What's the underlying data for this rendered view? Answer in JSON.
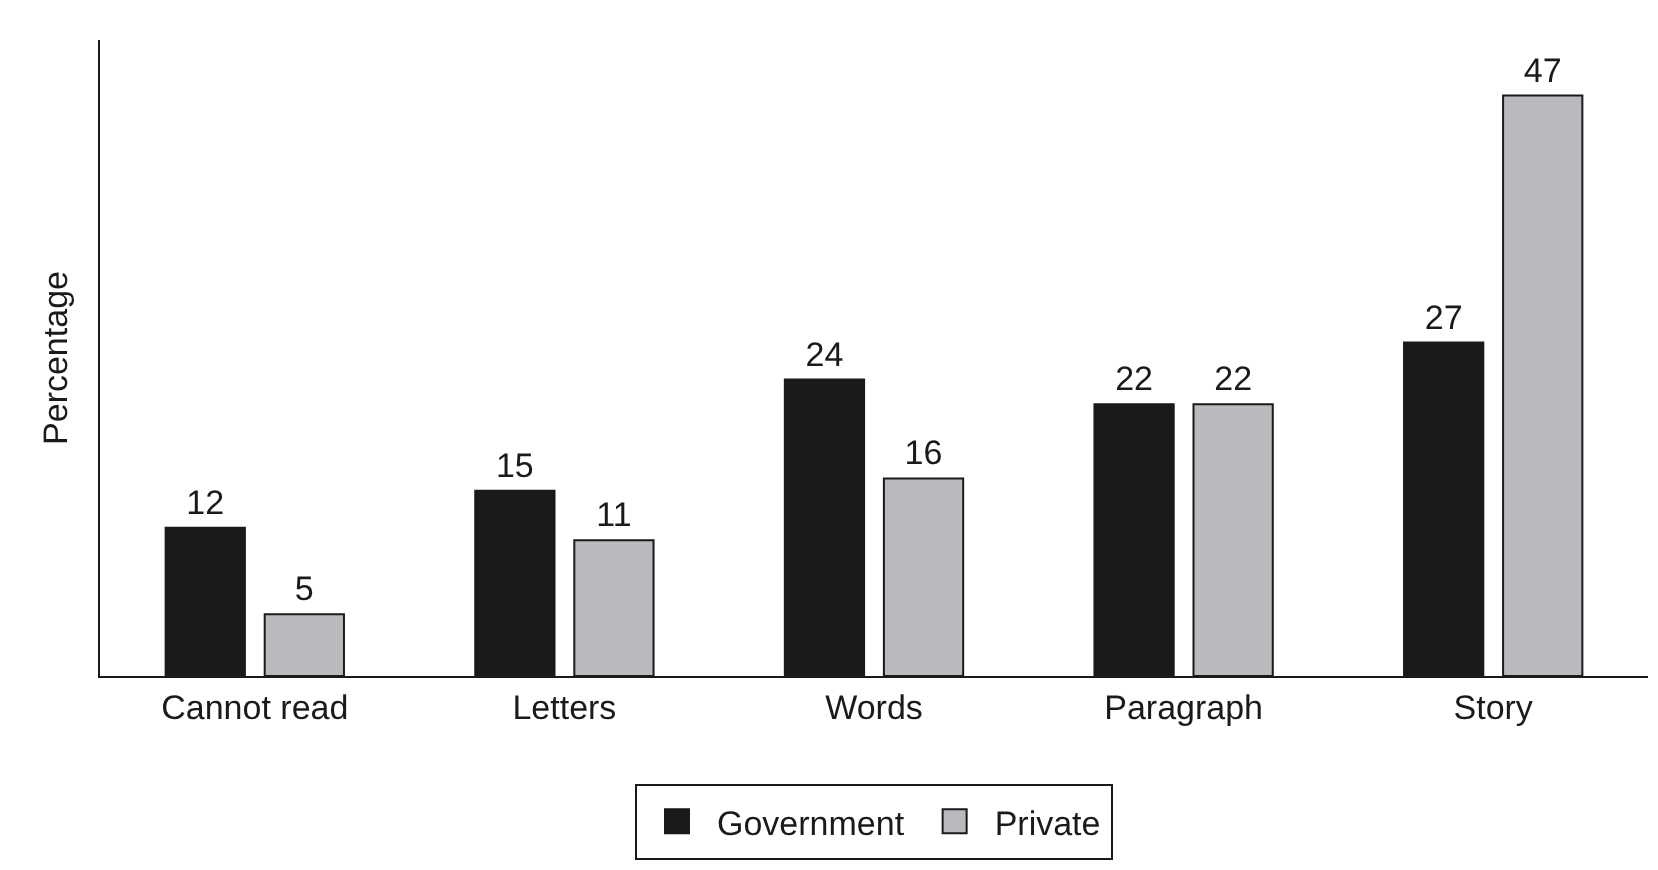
{
  "chart_data": {
    "type": "bar",
    "ylabel": "Percentage",
    "categories": [
      "Cannot read",
      "Letters",
      "Words",
      "Paragraph",
      "Story"
    ],
    "series": [
      {
        "name": "Government",
        "color": "#1a1a1a",
        "values": [
          12,
          15,
          24,
          22,
          27
        ]
      },
      {
        "name": "Private",
        "color": "#b9babd",
        "values": [
          5,
          11,
          16,
          22,
          47
        ]
      }
    ],
    "ylim": [
      0,
      51.5
    ],
    "tick_labels": "x",
    "data_labels": true,
    "legend": "bottom"
  }
}
